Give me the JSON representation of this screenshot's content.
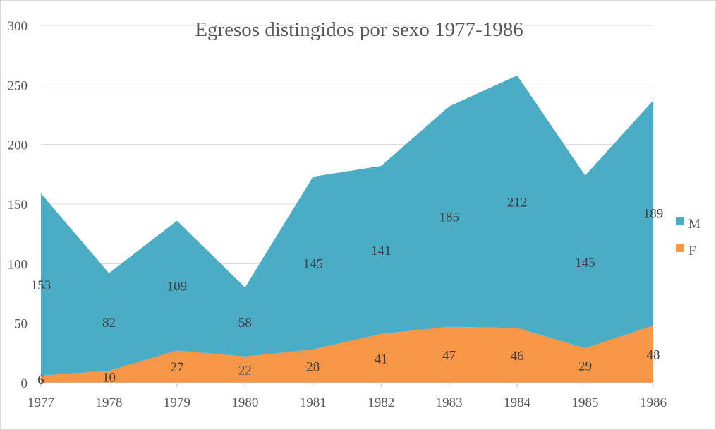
{
  "chart_data": {
    "type": "area",
    "stacked": true,
    "title": "Egresos distingidos por sexo 1977-1986",
    "xlabel": "",
    "ylabel": "",
    "categories": [
      "1977",
      "1978",
      "1979",
      "1980",
      "1981",
      "1982",
      "1983",
      "1984",
      "1985",
      "1986"
    ],
    "series": [
      {
        "name": "F",
        "color": "#F79646",
        "values": [
          6,
          10,
          27,
          22,
          28,
          41,
          47,
          46,
          29,
          48
        ]
      },
      {
        "name": "M",
        "color": "#4BACC6",
        "values": [
          153,
          82,
          109,
          58,
          145,
          141,
          185,
          212,
          145,
          189
        ]
      }
    ],
    "ylim": [
      0,
      300
    ],
    "yticks": [
      0,
      50,
      100,
      150,
      200,
      250,
      300
    ],
    "grid": true,
    "legend": "right",
    "legend_order": [
      "M",
      "F"
    ]
  }
}
